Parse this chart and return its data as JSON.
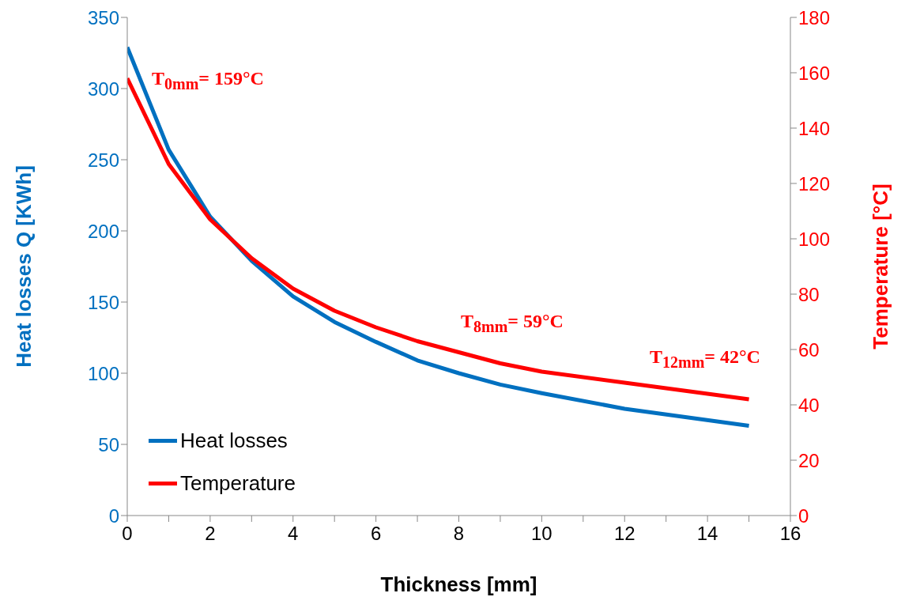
{
  "chart_data": {
    "type": "line",
    "xlabel": "Thickness [mm]",
    "ylabel": "Heat losses Q [KWh]",
    "y2label": "Temperature [°C]",
    "x": [
      0,
      1,
      2,
      3,
      4,
      5,
      6,
      7,
      8,
      9,
      10,
      12,
      15
    ],
    "series": [
      {
        "name": "Heat losses",
        "color": "#0070c0",
        "values": [
          329,
          257,
          210,
          179,
          154,
          136,
          122,
          109,
          100,
          92,
          86,
          75,
          63
        ]
      },
      {
        "name": "Temperature",
        "color": "#ff0000",
        "axis": "y2",
        "values": [
          158,
          127,
          107,
          93,
          82,
          74,
          68,
          63,
          59,
          55,
          52,
          48,
          42
        ]
      }
    ],
    "xlim": [
      0,
      16
    ],
    "xticks": [
      0,
      {
        "value": 1,
        "label": null
      },
      2,
      {
        "value": 3,
        "label": null
      },
      4,
      {
        "value": 5,
        "label": null
      },
      6,
      {
        "value": 7,
        "label": null
      },
      8,
      {
        "value": 9,
        "label": null
      },
      10,
      {
        "value": 11,
        "label": null
      },
      12,
      {
        "value": 13,
        "label": null
      },
      14,
      {
        "value": 15,
        "label": null
      },
      16
    ],
    "ylim": [
      0,
      350
    ],
    "yticks": [
      0,
      50,
      100,
      150,
      200,
      250,
      300,
      350
    ],
    "y2lim": [
      0,
      180
    ],
    "y2ticks": [
      0,
      20,
      40,
      60,
      80,
      100,
      120,
      140,
      160,
      180
    ],
    "annotations": [
      "T$_{0mm}$= 159°C",
      "T$_{8mm}$= 59°C",
      "T$_{12mm}$= 42°C"
    ],
    "legend": "bottom left",
    "grid": false,
    "marker": "none",
    "line_style": "solid"
  }
}
